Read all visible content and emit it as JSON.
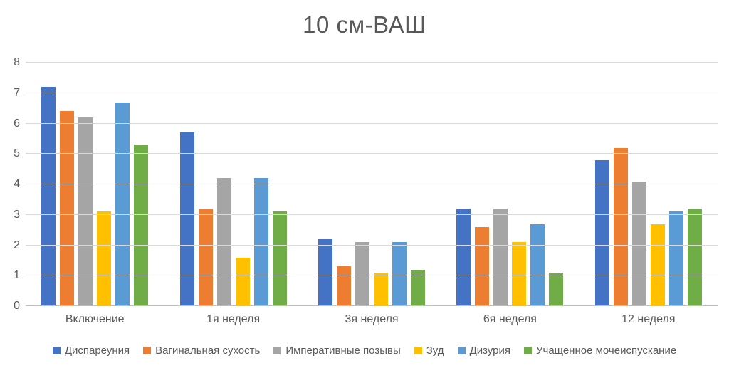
{
  "chart_data": {
    "type": "bar",
    "title": "10 см-ВАШ",
    "categories": [
      "Включение",
      "1я неделя",
      "3я неделя",
      "6я неделя",
      "12 неделя"
    ],
    "series": [
      {
        "name": "Диспареуния",
        "color": "#4472C4",
        "values": [
          7.2,
          5.7,
          2.2,
          3.2,
          4.8
        ]
      },
      {
        "name": "Вагинальная сухость",
        "color": "#ED7D31",
        "values": [
          6.4,
          3.2,
          1.3,
          2.6,
          5.2
        ]
      },
      {
        "name": "Императивные позывы",
        "color": "#A5A5A5",
        "values": [
          6.2,
          4.2,
          2.1,
          3.2,
          4.1
        ]
      },
      {
        "name": "Зуд",
        "color": "#FFC000",
        "values": [
          3.1,
          1.6,
          1.1,
          2.1,
          2.7
        ]
      },
      {
        "name": "Дизурия",
        "color": "#5B9BD5",
        "values": [
          6.7,
          4.2,
          2.1,
          2.7,
          3.1
        ]
      },
      {
        "name": "Учащенное мочеиспускание",
        "color": "#70AD47",
        "values": [
          5.3,
          3.1,
          1.2,
          1.1,
          3.2
        ]
      }
    ],
    "ylim": [
      0,
      8
    ],
    "yticks": [
      0,
      1,
      2,
      3,
      4,
      5,
      6,
      7,
      8
    ],
    "xlabel": "",
    "ylabel": "",
    "grid": true,
    "legend_position": "bottom"
  },
  "colors": {
    "background": "#FFFFFF",
    "title_text": "#595959",
    "axis_text": "#595959",
    "gridline": "#D9D9D9",
    "axis_line": "#BFBFBF"
  }
}
